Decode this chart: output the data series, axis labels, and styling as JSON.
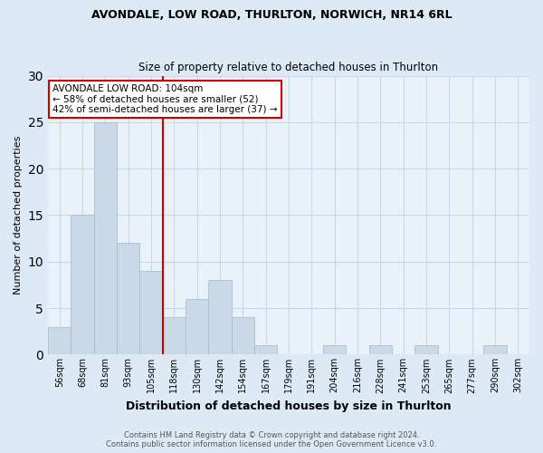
{
  "title1": "AVONDALE, LOW ROAD, THURLTON, NORWICH, NR14 6RL",
  "title2": "Size of property relative to detached houses in Thurlton",
  "xlabel": "Distribution of detached houses by size in Thurlton",
  "ylabel": "Number of detached properties",
  "footer1": "Contains HM Land Registry data © Crown copyright and database right 2024.",
  "footer2": "Contains public sector information licensed under the Open Government Licence v3.0.",
  "categories": [
    "56sqm",
    "68sqm",
    "81sqm",
    "93sqm",
    "105sqm",
    "118sqm",
    "130sqm",
    "142sqm",
    "154sqm",
    "167sqm",
    "179sqm",
    "191sqm",
    "204sqm",
    "216sqm",
    "228sqm",
    "241sqm",
    "253sqm",
    "265sqm",
    "277sqm",
    "290sqm",
    "302sqm"
  ],
  "values": [
    3,
    15,
    25,
    12,
    9,
    4,
    6,
    8,
    4,
    1,
    0,
    0,
    1,
    0,
    1,
    0,
    1,
    0,
    0,
    1,
    0
  ],
  "bar_color": "#c9d9e8",
  "bar_edge_color": "#a0b8cc",
  "vline_x_index": 4,
  "vline_color": "#cc0000",
  "annotation_box_text": "AVONDALE LOW ROAD: 104sqm\n← 58% of detached houses are smaller (52)\n42% of semi-detached houses are larger (37) →",
  "annotation_box_color": "#cc0000",
  "annotation_box_fill": "white",
  "ylim": [
    0,
    30
  ],
  "yticks": [
    0,
    5,
    10,
    15,
    20,
    25,
    30
  ],
  "grid_color": "#c8d8e8",
  "bg_color": "#ddeaf5",
  "plot_bg_color": "#e8f2f8"
}
